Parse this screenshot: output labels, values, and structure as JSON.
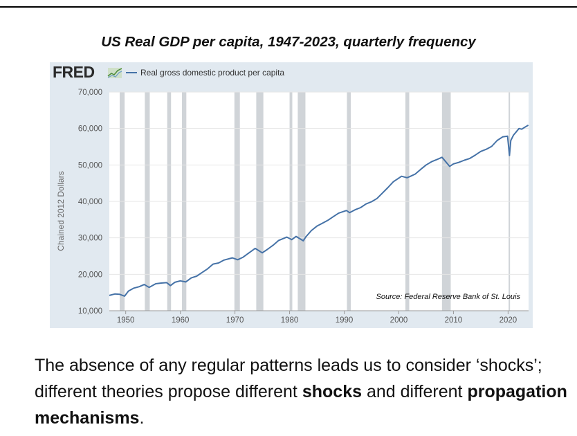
{
  "slide": {
    "title": "US Real GDP per capita, 1947-2023, quarterly frequency",
    "text": {
      "part1": "The absence of any regular patterns leads us to consider ‘shocks’; different theories propose different ",
      "bold1": "shocks",
      "part2": " and different ",
      "bold2": "propagation mechanisms",
      "part3": "."
    }
  },
  "chart_data": {
    "type": "line",
    "title": "",
    "logo": "FRED",
    "legend": {
      "label": "Real gross domestic product per capita",
      "placement": "top-left"
    },
    "ylabel": "Chained 2012 Dollars",
    "xlabel": "",
    "source_note": "Source: Federal Reserve Bank of St. Louis",
    "xlim": [
      1947,
      2023.75
    ],
    "ylim": [
      10000,
      70000
    ],
    "yticks": [
      10000,
      20000,
      30000,
      40000,
      50000,
      60000,
      70000
    ],
    "ytick_labels": [
      "10,000",
      "20,000",
      "30,000",
      "40,000",
      "50,000",
      "60,000",
      "70,000"
    ],
    "xticks": [
      1950,
      1960,
      1970,
      1980,
      1990,
      2000,
      2010,
      2020
    ],
    "xtick_labels": [
      "1950",
      "1960",
      "1970",
      "1980",
      "1990",
      "2000",
      "2010",
      "2020"
    ],
    "grid": "horizontal",
    "line_color": "#4572a7",
    "recession_color": "#d0d4d8",
    "recessions": [
      [
        1948.9,
        1949.8
      ],
      [
        1953.5,
        1954.4
      ],
      [
        1957.6,
        1958.3
      ],
      [
        1960.3,
        1961.1
      ],
      [
        1969.9,
        1970.9
      ],
      [
        1973.9,
        1975.2
      ],
      [
        1980.0,
        1980.5
      ],
      [
        1981.5,
        1982.9
      ],
      [
        1990.5,
        1991.2
      ],
      [
        2001.2,
        2001.9
      ],
      [
        2007.9,
        2009.5
      ],
      [
        2020.1,
        2020.3
      ]
    ],
    "series": [
      {
        "name": "Real gross domestic product per capita",
        "x": [
          1947.0,
          1948.0,
          1948.9,
          1949.8,
          1950.5,
          1951.5,
          1952.5,
          1953.4,
          1954.3,
          1955.5,
          1956.5,
          1957.5,
          1958.2,
          1959.0,
          1960.0,
          1961.0,
          1962.0,
          1963.0,
          1964.0,
          1965.0,
          1966.0,
          1967.0,
          1968.0,
          1969.5,
          1970.5,
          1971.5,
          1972.5,
          1973.7,
          1975.0,
          1976.0,
          1977.0,
          1978.0,
          1979.5,
          1980.4,
          1981.2,
          1982.5,
          1983.0,
          1984.0,
          1985.0,
          1986.0,
          1987.0,
          1988.0,
          1989.0,
          1990.4,
          1991.0,
          1992.0,
          1993.0,
          1994.0,
          1995.0,
          1996.0,
          1997.0,
          1998.0,
          1999.0,
          2000.5,
          2001.5,
          2002.0,
          2003.0,
          2004.0,
          2005.0,
          2006.0,
          2007.0,
          2007.9,
          2009.3,
          2010.0,
          2011.0,
          2012.0,
          2013.0,
          2014.0,
          2015.0,
          2016.0,
          2017.0,
          2018.0,
          2019.0,
          2019.9,
          2020.25,
          2020.5,
          2021.0,
          2022.0,
          2022.5,
          2023.0,
          2023.7
        ],
        "y": [
          14200,
          14600,
          14500,
          14000,
          15400,
          16200,
          16600,
          17200,
          16400,
          17400,
          17600,
          17700,
          16900,
          17800,
          18200,
          17900,
          19000,
          19500,
          20500,
          21500,
          22800,
          23100,
          23900,
          24500,
          24000,
          24700,
          25800,
          27100,
          25900,
          26900,
          28000,
          29300,
          30200,
          29500,
          30400,
          29200,
          30300,
          32000,
          33200,
          34000,
          34800,
          35800,
          36800,
          37500,
          36900,
          37700,
          38300,
          39300,
          39900,
          40800,
          42300,
          43800,
          45400,
          46900,
          46500,
          46800,
          47500,
          48800,
          50000,
          50900,
          51500,
          52100,
          49600,
          50300,
          50700,
          51300,
          51800,
          52700,
          53700,
          54300,
          55100,
          56700,
          57700,
          57900,
          52600,
          56700,
          58200,
          60000,
          59800,
          60300,
          60900
        ]
      }
    ]
  }
}
